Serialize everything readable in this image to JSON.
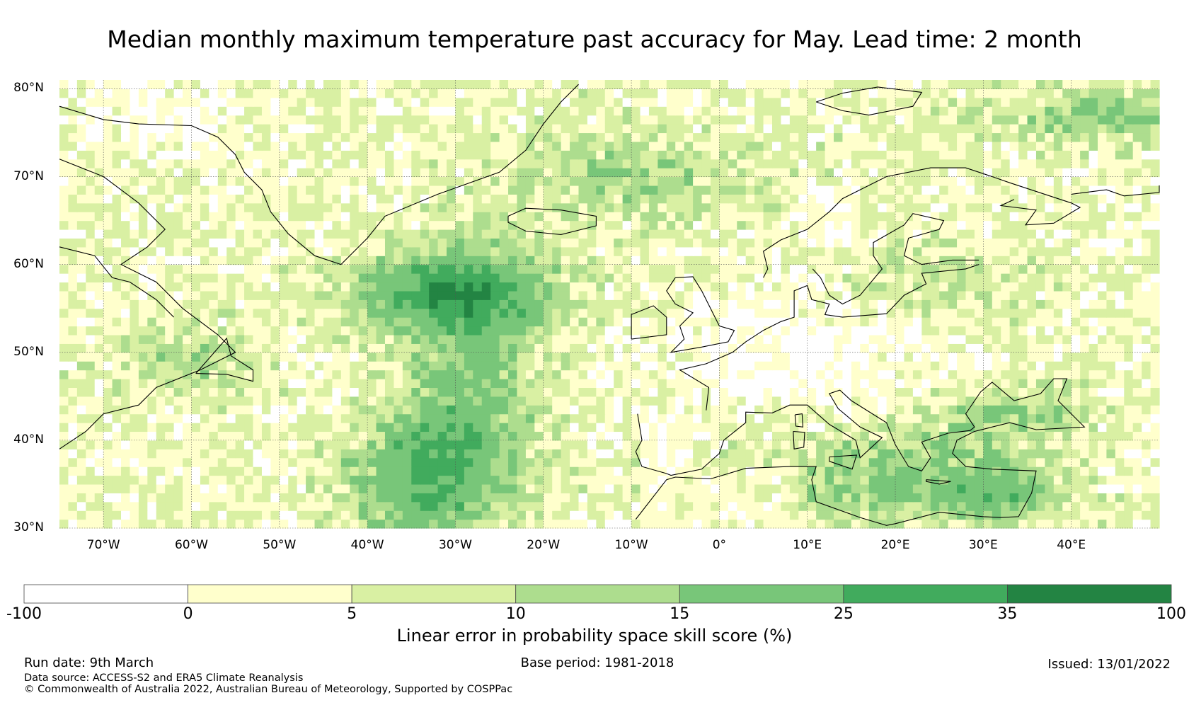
{
  "title": "Median monthly maximum temperature past accuracy for May. Lead time: 2 month",
  "map": {
    "lat_labels": [
      "80°N",
      "70°N",
      "60°N",
      "50°N",
      "40°N",
      "30°N"
    ],
    "lon_labels": [
      "70°W",
      "60°W",
      "50°W",
      "40°W",
      "30°W",
      "20°W",
      "10°W",
      "0°",
      "10°E",
      "20°E",
      "30°E",
      "40°E"
    ],
    "extent": {
      "lon_min": -75,
      "lon_max": 50,
      "lat_min": 30,
      "lat_max": 81
    }
  },
  "colorbar": {
    "ticks": [
      "-100",
      "0",
      "5",
      "10",
      "15",
      "25",
      "35",
      "100"
    ],
    "colors": [
      "#ffffff",
      "#ffffcc",
      "#d9f0a3",
      "#addd8e",
      "#78c679",
      "#41ab5d",
      "#238443"
    ],
    "label": "Linear error in probability space skill score (%)"
  },
  "footer": {
    "run_date": "Run date: 9th March",
    "base_period": "Base period: 1981-2018",
    "issued": "Issued: 13/01/2022",
    "data_source": "Data source: ACCESS-S2 and ERA5 Climate Reanalysis",
    "copyright": "© Commonwealth of Australia 2022, Australian Bureau of Meteorology, Supported by COSPPac"
  }
}
